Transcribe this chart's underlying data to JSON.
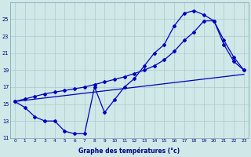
{
  "background_color": "#d0e8e8",
  "grid_color": "#a8cccc",
  "line_color": "#0000bb",
  "xlabel": "Graphe des températures (°c)",
  "hours": [
    0,
    1,
    2,
    3,
    4,
    5,
    6,
    7,
    8,
    9,
    10,
    11,
    12,
    13,
    14,
    15,
    16,
    17,
    18,
    19,
    20,
    21,
    22,
    23
  ],
  "curve_main": [
    15.3,
    14.6,
    13.5,
    13.0,
    13.0,
    11.8,
    11.5,
    11.5,
    17.0,
    14.0,
    15.5,
    17.0,
    18.0,
    19.5,
    21.0,
    22.0,
    24.2,
    25.7,
    26.0,
    25.5,
    24.8,
    22.0,
    20.0,
    19.0
  ],
  "curve_upper": [
    15.3,
    15.6,
    15.9,
    16.2,
    16.4,
    16.6,
    16.8,
    17.0,
    17.3,
    17.6,
    17.9,
    18.2,
    18.6,
    19.0,
    19.5,
    20.2,
    21.2,
    22.5,
    23.5,
    24.8,
    24.8,
    22.5,
    20.5,
    19.0
  ],
  "trend_x": [
    0,
    23
  ],
  "trend_y": [
    15.3,
    18.5
  ],
  "ylim": [
    11,
    27
  ],
  "yticks": [
    11,
    13,
    15,
    17,
    19,
    21,
    23,
    25
  ],
  "xticks": [
    0,
    1,
    2,
    3,
    4,
    5,
    6,
    7,
    8,
    9,
    10,
    11,
    12,
    13,
    14,
    15,
    16,
    17,
    18,
    19,
    20,
    21,
    22,
    23
  ]
}
